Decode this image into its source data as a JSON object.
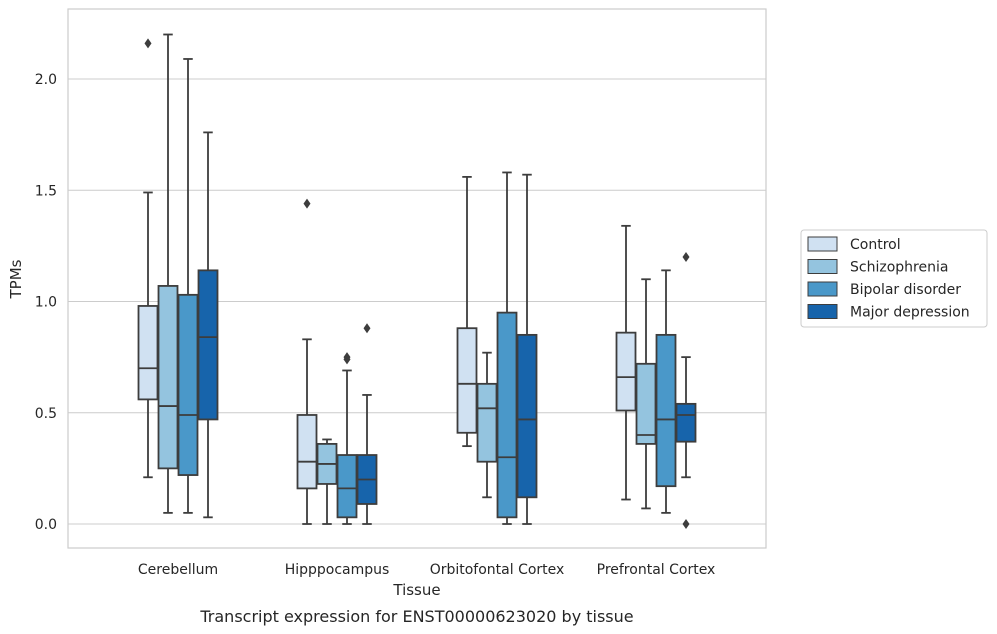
{
  "caption": "Transcript expression for ENST00000623020 by tissue",
  "chart_data": {
    "type": "box",
    "xlabel": "Tissue",
    "ylabel": "TPMs",
    "ylim": [
      -0.1,
      2.32
    ],
    "yticks": [
      0.0,
      0.5,
      1.0,
      1.5,
      2.0
    ],
    "ytick_labels": [
      "0.0",
      "0.5",
      "1.0",
      "1.5",
      "2.0"
    ],
    "grid": "horizontal",
    "legend_position": "right",
    "categories": [
      "Cerebellum",
      "Hipppocampus",
      "Orbitofontal Cortex",
      "Prefrontal Cortex"
    ],
    "series": [
      {
        "name": "Control",
        "color": "#d0e1f2",
        "boxes": [
          {
            "whisker_low": 0.21,
            "q1": 0.56,
            "median": 0.7,
            "q3": 0.98,
            "whisker_high": 1.49,
            "outliers": [
              2.16
            ]
          },
          {
            "whisker_low": 0.0,
            "q1": 0.16,
            "median": 0.28,
            "q3": 0.49,
            "whisker_high": 0.83,
            "outliers": [
              1.44
            ]
          },
          {
            "whisker_low": 0.35,
            "q1": 0.41,
            "median": 0.63,
            "q3": 0.88,
            "whisker_high": 1.56,
            "outliers": []
          },
          {
            "whisker_low": 0.11,
            "q1": 0.51,
            "median": 0.66,
            "q3": 0.86,
            "whisker_high": 1.34,
            "outliers": []
          }
        ]
      },
      {
        "name": "Schizophrenia",
        "color": "#94c4df",
        "boxes": [
          {
            "whisker_low": 0.05,
            "q1": 0.25,
            "median": 0.53,
            "q3": 1.07,
            "whisker_high": 2.2,
            "outliers": []
          },
          {
            "whisker_low": 0.0,
            "q1": 0.18,
            "median": 0.27,
            "q3": 0.36,
            "whisker_high": 0.38,
            "outliers": []
          },
          {
            "whisker_low": 0.12,
            "q1": 0.28,
            "median": 0.52,
            "q3": 0.63,
            "whisker_high": 0.77,
            "outliers": []
          },
          {
            "whisker_low": 0.07,
            "q1": 0.36,
            "median": 0.4,
            "q3": 0.72,
            "whisker_high": 1.1,
            "outliers": []
          }
        ]
      },
      {
        "name": "Bipolar disorder",
        "color": "#4a98c9",
        "boxes": [
          {
            "whisker_low": 0.05,
            "q1": 0.22,
            "median": 0.49,
            "q3": 1.03,
            "whisker_high": 2.09,
            "outliers": []
          },
          {
            "whisker_low": 0.0,
            "q1": 0.03,
            "median": 0.16,
            "q3": 0.31,
            "whisker_high": 0.69,
            "outliers": [
              0.74,
              0.75
            ]
          },
          {
            "whisker_low": 0.0,
            "q1": 0.03,
            "median": 0.3,
            "q3": 0.95,
            "whisker_high": 1.58,
            "outliers": []
          },
          {
            "whisker_low": 0.05,
            "q1": 0.17,
            "median": 0.47,
            "q3": 0.85,
            "whisker_high": 1.14,
            "outliers": []
          }
        ]
      },
      {
        "name": "Major depression",
        "color": "#1764ab",
        "boxes": [
          {
            "whisker_low": 0.03,
            "q1": 0.47,
            "median": 0.84,
            "q3": 1.14,
            "whisker_high": 1.76,
            "outliers": []
          },
          {
            "whisker_low": 0.0,
            "q1": 0.09,
            "median": 0.2,
            "q3": 0.31,
            "whisker_high": 0.58,
            "outliers": [
              0.88
            ]
          },
          {
            "whisker_low": 0.0,
            "q1": 0.12,
            "median": 0.47,
            "q3": 0.85,
            "whisker_high": 1.57,
            "outliers": []
          },
          {
            "whisker_low": 0.21,
            "q1": 0.37,
            "median": 0.49,
            "q3": 0.54,
            "whisker_high": 0.75,
            "outliers": [
              0.0,
              1.2
            ]
          }
        ]
      }
    ]
  }
}
